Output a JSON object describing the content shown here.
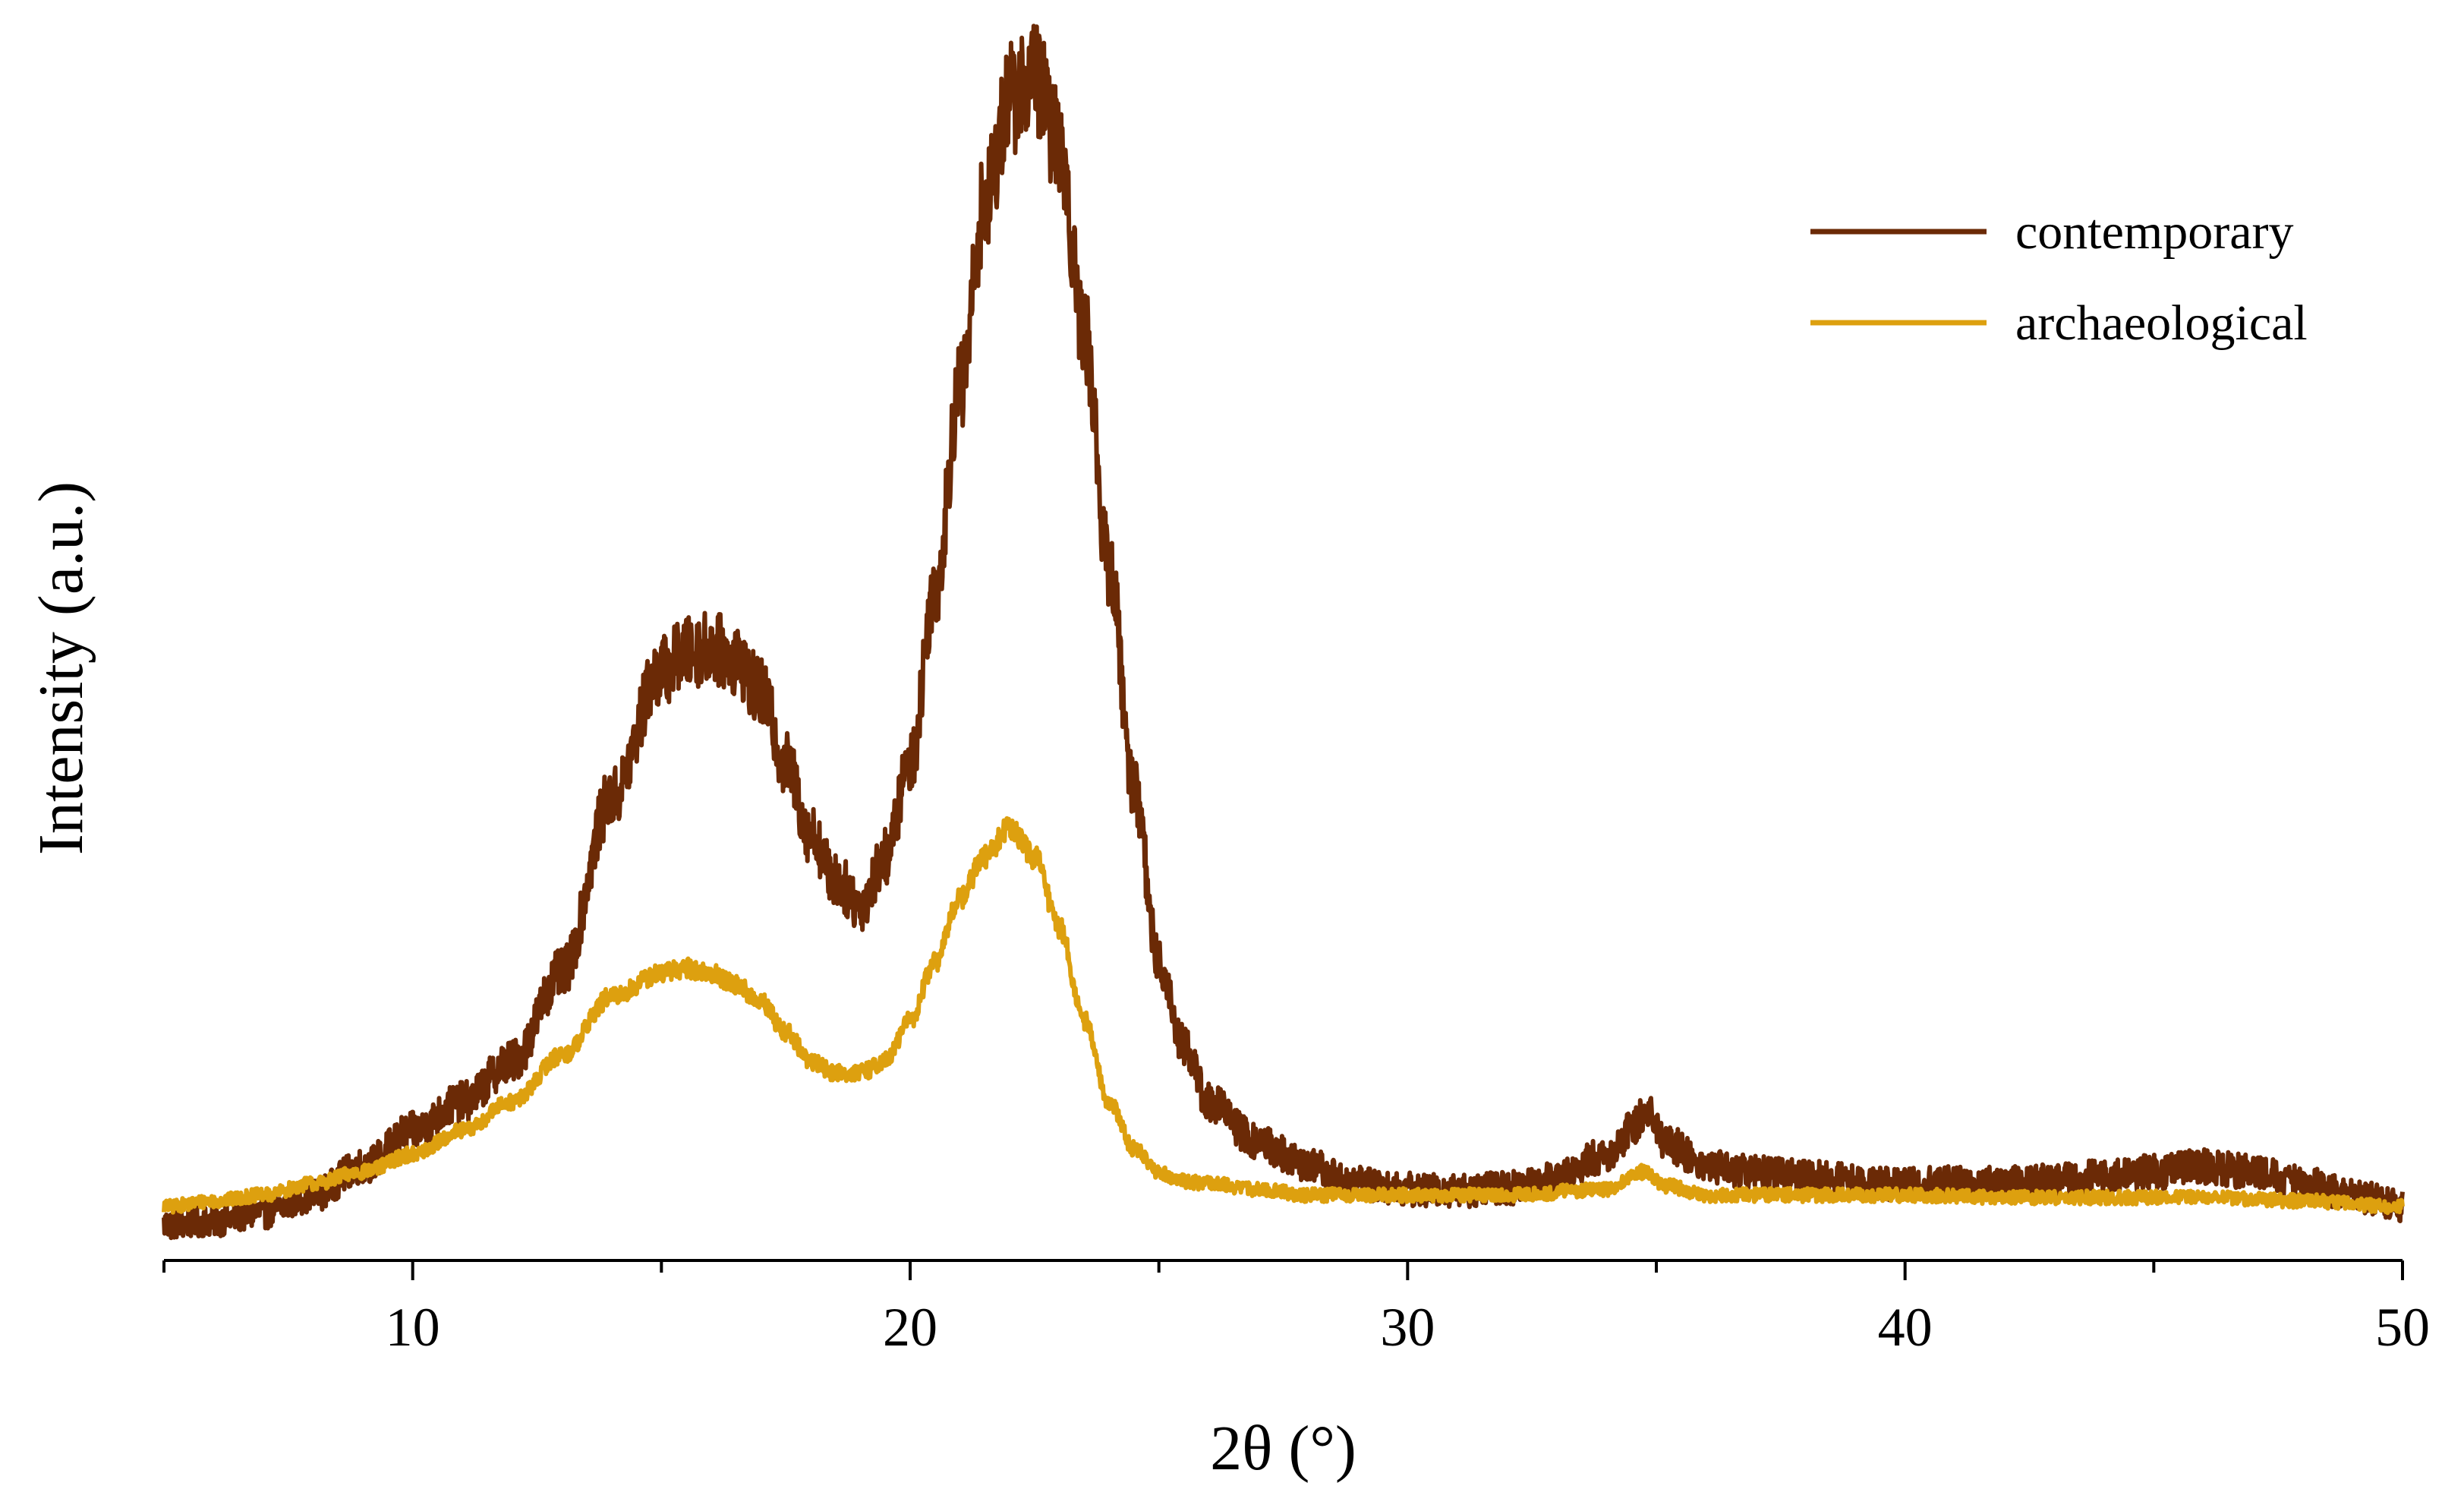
{
  "chart_data": {
    "type": "line",
    "xlabel": "2θ (°)",
    "ylabel": "Intensity (a.u.)",
    "xlim": [
      5,
      50
    ],
    "ylim": [
      0,
      100
    ],
    "xticks": [
      10,
      20,
      30,
      40,
      50
    ],
    "xticks_minor": [
      15,
      25,
      35,
      45
    ],
    "y_tick_labels": false,
    "grid": false,
    "legend_position": "top-right",
    "series": [
      {
        "name": "contemporary",
        "color": "#6b2a06",
        "noise": 2.2,
        "x": [
          5,
          6,
          7,
          8,
          9,
          10,
          11,
          12,
          13,
          14,
          15,
          15.5,
          16,
          16.5,
          17,
          17.5,
          18,
          18.5,
          19,
          19.5,
          20,
          20.5,
          21,
          21.5,
          22,
          22.5,
          23,
          23.5,
          24,
          24.5,
          25,
          25.5,
          26,
          27,
          28,
          29,
          30,
          31,
          32,
          33,
          34,
          34.5,
          34.8,
          35.2,
          36,
          37,
          38,
          40,
          42,
          44,
          45,
          46,
          47,
          48,
          49,
          50
        ],
        "y": [
          0.5,
          0.8,
          1.5,
          3,
          5.5,
          8.5,
          11,
          14.5,
          22,
          37,
          48,
          49.5,
          50,
          49,
          46,
          40,
          34,
          30,
          28,
          32,
          40,
          55,
          72,
          88,
          97,
          99,
          93,
          77,
          57,
          38,
          23,
          16,
          11,
          7.5,
          5.5,
          4,
          3.5,
          3.4,
          3.6,
          4.5,
          6.5,
          8.5,
          10.5,
          7.5,
          5.5,
          5,
          4.5,
          4,
          4,
          4.5,
          5,
          5.5,
          5,
          4,
          3,
          2
        ]
      },
      {
        "name": "archaeological",
        "color": "#dda00f",
        "noise": 0.9,
        "x": [
          5,
          6,
          7,
          8,
          9,
          10,
          11,
          12,
          13,
          14,
          15,
          15.5,
          16,
          16.5,
          17,
          17.5,
          18,
          18.5,
          19,
          19.5,
          20,
          20.5,
          21,
          21.5,
          22,
          22.5,
          23,
          23.5,
          24,
          24.5,
          25,
          25.5,
          26,
          27,
          28,
          29,
          30,
          32,
          34,
          34.7,
          35.2,
          36,
          38,
          40,
          42,
          44,
          46,
          48,
          50
        ],
        "y": [
          2,
          2.5,
          3,
          4,
          5,
          6.5,
          8.5,
          11,
          15,
          20,
          22,
          22.5,
          22,
          21,
          19.5,
          17,
          14.5,
          13.5,
          13.5,
          14.5,
          18,
          23,
          28.5,
          32,
          34.5,
          32,
          26,
          18,
          11,
          7,
          5,
          4.2,
          4,
          3.5,
          3,
          3,
          3,
          3,
          3.5,
          5,
          3.8,
          3,
          3,
          3,
          2.8,
          2.8,
          2.8,
          2.5,
          2
        ]
      }
    ]
  }
}
